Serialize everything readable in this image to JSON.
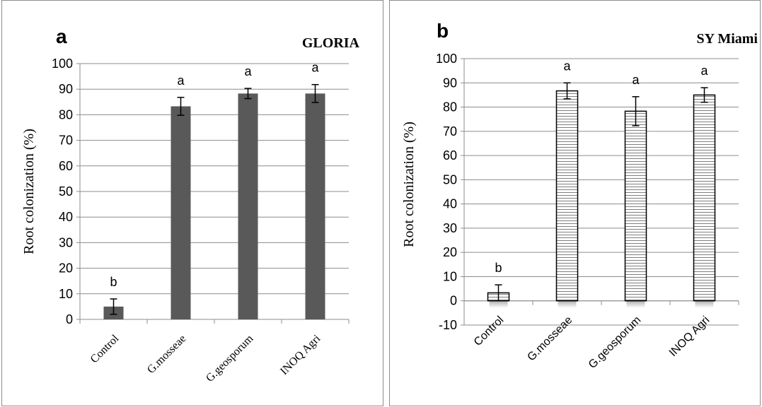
{
  "chart_data": [
    {
      "panel_letter": "a",
      "title": "GLORIA",
      "type": "bar",
      "ylabel": "Root colonization (%)",
      "categories": [
        "Control",
        "G.mosseae",
        "G.geosporum",
        "INOQ Agri"
      ],
      "values": [
        5,
        83.3,
        88.3,
        88.3
      ],
      "errors": [
        3,
        3.5,
        2,
        3.5
      ],
      "significance": [
        "b",
        "a",
        "a",
        "a"
      ],
      "ylim": [
        0,
        100
      ],
      "yticks": [
        "0",
        "10",
        "20",
        "30",
        "40",
        "50",
        "60",
        "70",
        "80",
        "90",
        "100"
      ],
      "bar_color": "#595959",
      "bar_pattern": "solid",
      "grid": true
    },
    {
      "panel_letter": "b",
      "title": "SY Miami",
      "type": "bar",
      "ylabel": "Root colonization (%)",
      "categories": [
        "Control",
        "G.mosseae",
        "G.geosporum",
        "INOQ Agri"
      ],
      "values": [
        3.3,
        86.7,
        78.3,
        85
      ],
      "errors": [
        3.3,
        3.3,
        6,
        3
      ],
      "significance": [
        "b",
        "a",
        "a",
        "a"
      ],
      "ylim": [
        -10,
        100
      ],
      "yticks": [
        "-10",
        "0",
        "10",
        "20",
        "30",
        "40",
        "50",
        "60",
        "70",
        "80",
        "90",
        "100"
      ],
      "bar_color": "#ffffff",
      "bar_pattern": "horizontal-lines",
      "grid": true
    }
  ]
}
